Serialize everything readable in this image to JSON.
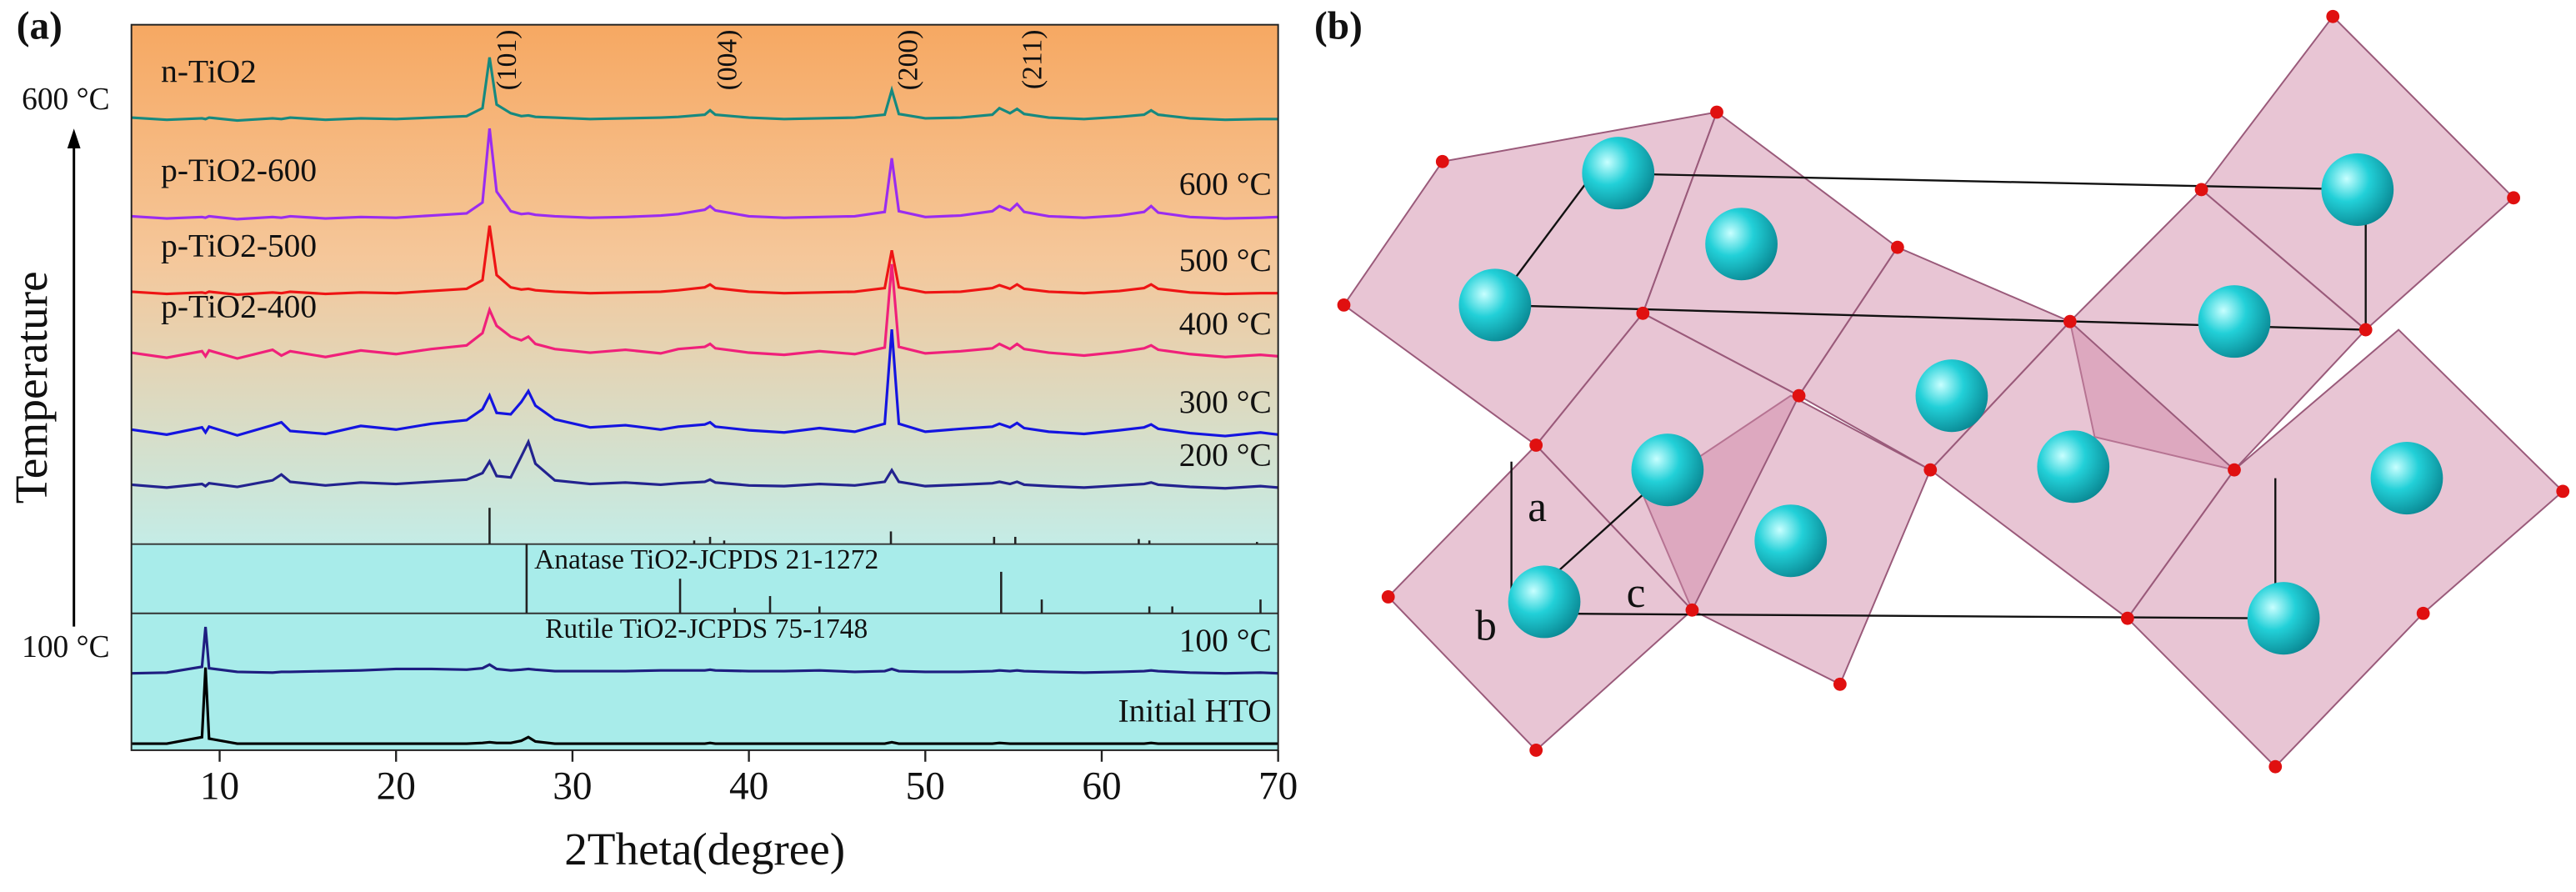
{
  "panels": [
    "(a)",
    "(b)"
  ],
  "chart_data": {
    "type": "line",
    "xlabel": "2Theta(degree)",
    "temperature_axis": {
      "label": "Temperature",
      "start": "100 °C",
      "end": "600 °C"
    },
    "xlim": [
      5,
      70
    ],
    "xticks": [
      10,
      20,
      30,
      40,
      50,
      60,
      70
    ],
    "ylim": [
      0,
      100
    ],
    "x": [
      5,
      7,
      9,
      9.2,
      9.4,
      11,
      13,
      13.5,
      14,
      16,
      18,
      20,
      22,
      24,
      24.9,
      25.3,
      25.7,
      26.5,
      27.1,
      27.5,
      27.9,
      29,
      31,
      33,
      35,
      36,
      37.5,
      37.8,
      38.1,
      40,
      42,
      44,
      46,
      47.7,
      48.1,
      48.5,
      50,
      52,
      53.8,
      54.2,
      54.8,
      55.2,
      55.6,
      57,
      59,
      61,
      62.4,
      62.8,
      63.2,
      65,
      67,
      69,
      70
    ],
    "series": [
      {
        "name": "n-TiO2",
        "color": "#16897f",
        "values": [
          87.2,
          86.9,
          87.1,
          87,
          87.2,
          86.8,
          87.1,
          87,
          87.2,
          86.9,
          87.1,
          87,
          87.2,
          87.4,
          88.5,
          95.5,
          89,
          87.8,
          87.4,
          87.5,
          87.3,
          87.2,
          87,
          87.1,
          87.2,
          87.3,
          87.6,
          88.2,
          87.6,
          87.2,
          87,
          87.1,
          87.2,
          87.6,
          91,
          87.7,
          87.1,
          87.2,
          87.6,
          88.5,
          87.8,
          88.4,
          87.7,
          87.2,
          87,
          87.3,
          87.6,
          88.2,
          87.6,
          87.1,
          86.9,
          87,
          87
        ]
      },
      {
        "name": "p-TiO2-600",
        "tag": "600 °C",
        "color": "#9a2cf0",
        "values": [
          73.6,
          73.3,
          73.5,
          73.4,
          73.6,
          73.2,
          73.5,
          73.4,
          73.6,
          73.3,
          73.5,
          73.4,
          73.7,
          74,
          75.5,
          85.7,
          77,
          74.3,
          73.9,
          74,
          73.8,
          73.6,
          73.4,
          73.5,
          73.7,
          73.9,
          74.5,
          75,
          74.4,
          73.6,
          73.4,
          73.5,
          73.6,
          74.2,
          81.6,
          74.3,
          73.5,
          73.7,
          74.3,
          75,
          74.4,
          75.3,
          74.2,
          73.6,
          73.4,
          73.7,
          74.2,
          75,
          74.1,
          73.5,
          73.3,
          73.4,
          73.5
        ]
      },
      {
        "name": "p-TiO2-500",
        "tag": "500 °C",
        "color": "#ee1414",
        "values": [
          63.2,
          62.9,
          63.1,
          63,
          63.2,
          62.8,
          63.1,
          63,
          63.2,
          62.9,
          63.1,
          63,
          63.3,
          63.6,
          64.8,
          72.3,
          65.5,
          63.8,
          63.5,
          63.6,
          63.4,
          63.2,
          63,
          63.1,
          63.2,
          63.4,
          63.8,
          64.2,
          63.7,
          63.2,
          63,
          63.1,
          63.2,
          63.7,
          68.9,
          63.8,
          63.1,
          63.2,
          63.7,
          64.1,
          63.6,
          64.2,
          63.6,
          63.2,
          63,
          63.3,
          63.7,
          64.2,
          63.6,
          63.1,
          62.9,
          63,
          63
        ]
      },
      {
        "name": "p-TiO2-400",
        "tag": "400 °C",
        "color": "#f0207a",
        "values": [
          54.8,
          54.1,
          55,
          54.3,
          55.1,
          54,
          55.2,
          54.4,
          55,
          54.2,
          55.1,
          54.6,
          55.3,
          55.8,
          57.5,
          60.7,
          58.5,
          57,
          56.5,
          57,
          56,
          55.3,
          54.8,
          55.2,
          54.7,
          55.3,
          55.6,
          56,
          55.4,
          54.8,
          54.5,
          55,
          54.6,
          55.5,
          67,
          55.6,
          54.7,
          55,
          55.4,
          56,
          55.3,
          56,
          55.3,
          54.8,
          54.4,
          54.9,
          55.4,
          55.8,
          55.2,
          54.6,
          54.2,
          54.5,
          54.3
        ]
      },
      {
        "tag": "300 °C",
        "color": "#1414e0",
        "values": [
          44.2,
          43.5,
          44.5,
          43.8,
          44.6,
          43.4,
          44.8,
          45.2,
          44,
          43.6,
          44.7,
          44.2,
          45,
          45.5,
          47,
          48.9,
          46.5,
          46.3,
          48,
          49.5,
          47.5,
          45.6,
          44.5,
          44.8,
          44.2,
          44.6,
          44.9,
          45.2,
          44.6,
          44.1,
          43.8,
          44.4,
          43.9,
          45,
          58,
          45,
          43.9,
          44.3,
          44.6,
          45,
          44.5,
          45.1,
          44.4,
          43.9,
          43.6,
          44.1,
          44.5,
          44.9,
          44.3,
          43.7,
          43.3,
          43.8,
          43.5
        ]
      },
      {
        "tag": "200 °C",
        "color": "#23238f",
        "values": [
          36.6,
          36.2,
          36.7,
          36.4,
          36.8,
          36.3,
          37.2,
          38,
          37,
          36.5,
          36.9,
          36.7,
          37,
          37.3,
          38.2,
          39.8,
          37.8,
          37.6,
          40.5,
          42.5,
          39.5,
          37.2,
          36.7,
          36.9,
          36.6,
          36.8,
          37,
          37.3,
          36.9,
          36.5,
          36.4,
          36.7,
          36.5,
          37,
          38.6,
          37,
          36.4,
          36.6,
          36.8,
          37,
          36.7,
          37,
          36.6,
          36.4,
          36.2,
          36.5,
          36.7,
          36.9,
          36.6,
          36.3,
          36.1,
          36.4,
          36.2
        ]
      },
      {
        "tag": "100 °C",
        "color": "#1e1e80",
        "values": [
          10.6,
          10.7,
          11.5,
          17,
          11.3,
          10.8,
          10.7,
          10.8,
          10.8,
          10.9,
          11,
          11.2,
          11.2,
          11.1,
          11.3,
          11.8,
          11.2,
          11,
          11.1,
          11.2,
          11.1,
          10.9,
          10.9,
          10.9,
          11,
          11,
          11,
          11.1,
          11,
          10.9,
          10.9,
          11,
          10.8,
          10.9,
          11.2,
          10.9,
          10.8,
          10.8,
          10.9,
          11,
          10.9,
          11,
          10.9,
          10.8,
          10.7,
          10.8,
          10.9,
          11,
          10.9,
          10.7,
          10.6,
          10.7,
          10.6
        ]
      },
      {
        "tag": "Initial HTO",
        "color": "#000000",
        "values": [
          0.9,
          0.9,
          1.8,
          11.4,
          1.6,
          0.9,
          0.9,
          0.9,
          0.9,
          0.9,
          0.9,
          0.9,
          0.9,
          0.9,
          1,
          1.1,
          1,
          1,
          1.3,
          1.8,
          1.2,
          0.9,
          0.9,
          0.9,
          0.9,
          0.9,
          0.9,
          1,
          0.9,
          0.9,
          0.9,
          0.9,
          0.9,
          0.9,
          1.1,
          0.9,
          0.9,
          0.9,
          0.9,
          1,
          0.9,
          0.9,
          0.9,
          0.9,
          0.9,
          0.9,
          0.9,
          1,
          0.9,
          0.9,
          0.9,
          0.9,
          0.9
        ]
      }
    ],
    "references": [
      {
        "name": "Anatase TiO2-JCPDS 21-1272",
        "x": [
          25.3,
          36.9,
          37.8,
          38.6,
          48.05,
          53.9,
          55.1,
          62.1,
          62.7,
          68.8
        ],
        "values": [
          100,
          10,
          20,
          10,
          35,
          20,
          20,
          14,
          10,
          6
        ]
      },
      {
        "name": "Rutile TiO2-JCPDS 75-1748",
        "x": [
          27.4,
          36.1,
          39.2,
          41.2,
          44.0,
          54.3,
          56.6,
          62.7,
          64.0,
          69.0
        ],
        "values": [
          100,
          50,
          8,
          25,
          10,
          60,
          20,
          10,
          10,
          20
        ]
      }
    ],
    "annotations": [
      {
        "text": "(101)",
        "x": 25.3
      },
      {
        "text": "(004)",
        "x": 37.8
      },
      {
        "text": "(200)",
        "x": 48.05
      },
      {
        "text": "(211)",
        "x": 55.1
      }
    ]
  },
  "structure": {
    "axis_labels": [
      "a",
      "b",
      "c"
    ]
  }
}
